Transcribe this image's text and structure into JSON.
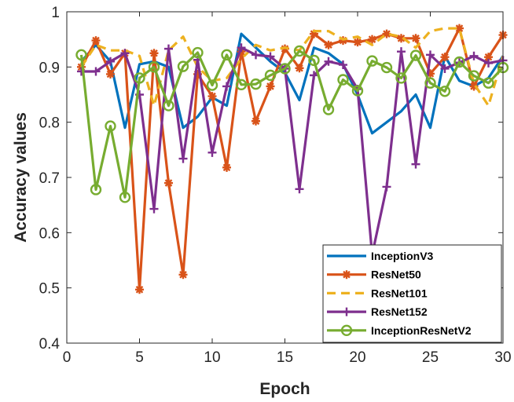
{
  "chart_data": {
    "type": "line",
    "xlabel": "Epoch",
    "ylabel": "Accuracy values",
    "xlim": [
      0,
      30
    ],
    "ylim": [
      0.4,
      1
    ],
    "xticks": [
      0,
      5,
      10,
      15,
      20,
      25,
      30
    ],
    "yticks": [
      0.4,
      0.5,
      0.6,
      0.7,
      0.8,
      0.9,
      1
    ],
    "ytick_labels": [
      "0.4",
      "0.5",
      "0.6",
      "0.7",
      "0.8",
      "0.9",
      "1"
    ],
    "grid": false,
    "legend_position": "bottom-right",
    "x": [
      1,
      2,
      3,
      4,
      5,
      6,
      7,
      8,
      9,
      10,
      11,
      12,
      13,
      14,
      15,
      16,
      17,
      18,
      19,
      20,
      21,
      22,
      23,
      24,
      25,
      26,
      27,
      28,
      29,
      30
    ],
    "series": [
      {
        "name": "InceptionV3",
        "color": "#0072BD",
        "style": "solid",
        "marker": "none",
        "values": [
          0.91,
          0.94,
          0.91,
          0.79,
          0.905,
          0.91,
          0.9,
          0.79,
          0.81,
          0.845,
          0.83,
          0.96,
          0.935,
          0.91,
          0.89,
          0.84,
          0.935,
          0.925,
          0.905,
          0.85,
          0.78,
          0.8,
          0.82,
          0.85,
          0.79,
          0.92,
          0.875,
          0.865,
          0.88,
          0.92
        ]
      },
      {
        "name": "ResNet50",
        "color": "#D95319",
        "style": "solid",
        "marker": "asterisk",
        "values": [
          0.9,
          0.948,
          0.887,
          0.925,
          0.497,
          0.925,
          0.69,
          0.524,
          0.887,
          0.847,
          0.718,
          0.928,
          0.802,
          0.865,
          0.933,
          0.898,
          0.96,
          0.94,
          0.948,
          0.945,
          0.95,
          0.96,
          0.952,
          0.952,
          0.888,
          0.918,
          0.97,
          0.865,
          0.918,
          0.958
        ]
      },
      {
        "name": "ResNet101",
        "color": "#EDB120",
        "style": "dashed",
        "marker": "none",
        "values": [
          0.9,
          0.94,
          0.93,
          0.93,
          0.92,
          0.83,
          0.93,
          0.955,
          0.9,
          0.875,
          0.88,
          0.915,
          0.94,
          0.93,
          0.935,
          0.93,
          0.965,
          0.965,
          0.95,
          0.955,
          0.94,
          0.96,
          0.955,
          0.935,
          0.965,
          0.97,
          0.97,
          0.87,
          0.83,
          0.92
        ]
      },
      {
        "name": "ResNet152",
        "color": "#7E2F8E",
        "style": "solid",
        "marker": "plus",
        "values": [
          0.892,
          0.892,
          0.91,
          0.925,
          0.85,
          0.643,
          0.933,
          0.734,
          0.913,
          0.745,
          0.865,
          0.935,
          0.922,
          0.919,
          0.897,
          0.679,
          0.885,
          0.91,
          0.904,
          0.86,
          0.56,
          0.683,
          0.928,
          0.724,
          0.922,
          0.897,
          0.908,
          0.92,
          0.907,
          0.912
        ]
      },
      {
        "name": "InceptionResNetV2",
        "color": "#77AC30",
        "style": "solid",
        "marker": "circle",
        "values": [
          0.922,
          0.678,
          0.793,
          0.664,
          0.88,
          0.9,
          0.83,
          0.901,
          0.926,
          0.867,
          0.922,
          0.868,
          0.869,
          0.885,
          0.897,
          0.929,
          0.912,
          0.823,
          0.877,
          0.857,
          0.911,
          0.899,
          0.88,
          0.921,
          0.871,
          0.856,
          0.909,
          0.884,
          0.871,
          0.899
        ]
      }
    ]
  }
}
